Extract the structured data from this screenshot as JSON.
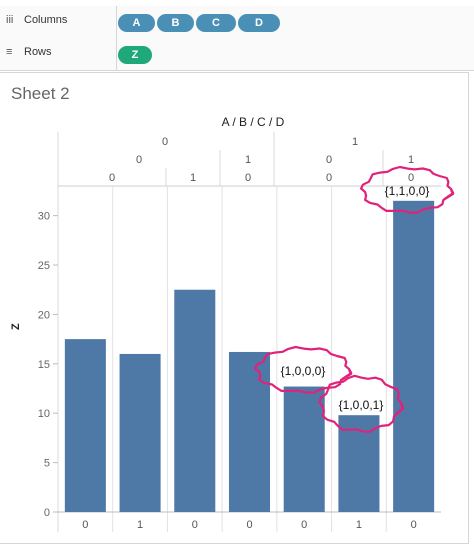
{
  "shelves": {
    "columns_label": "Columns",
    "rows_label": "Rows",
    "column_pills": [
      "A",
      "B",
      "C",
      "D"
    ],
    "row_pills": [
      "Z"
    ]
  },
  "sheet": {
    "title": "Sheet 2",
    "column_title": "A / B / C / D",
    "y_title": "Z"
  },
  "headers": {
    "level1": [
      "0",
      "1"
    ],
    "level2": [
      "0",
      "1",
      "0",
      "1"
    ],
    "level3": [
      "0",
      "1",
      "0",
      "0",
      "0"
    ],
    "bottom": [
      "0",
      "1",
      "0",
      "0",
      "0",
      "1",
      "0"
    ]
  },
  "annotations": [
    "{1,1,0,0}",
    "{1,0,0,0}",
    "{1,0,0,1}"
  ],
  "colors": {
    "bar": "#4e79a7",
    "circle": "#e0227a",
    "pill_blue": "#4a8fb5",
    "pill_green": "#1fa87a"
  },
  "chart_data": {
    "type": "bar",
    "categories": [
      "0",
      "1",
      "0",
      "0",
      "0",
      "1",
      "0"
    ],
    "values": [
      17.5,
      16,
      22.5,
      16.2,
      12.7,
      9.8,
      31.5
    ],
    "ylim": [
      0,
      33
    ],
    "yticks": [
      0,
      5,
      10,
      15,
      20,
      25,
      30
    ],
    "ylabel": "Z",
    "xlabel": "A / B / C / D",
    "grid": true
  }
}
